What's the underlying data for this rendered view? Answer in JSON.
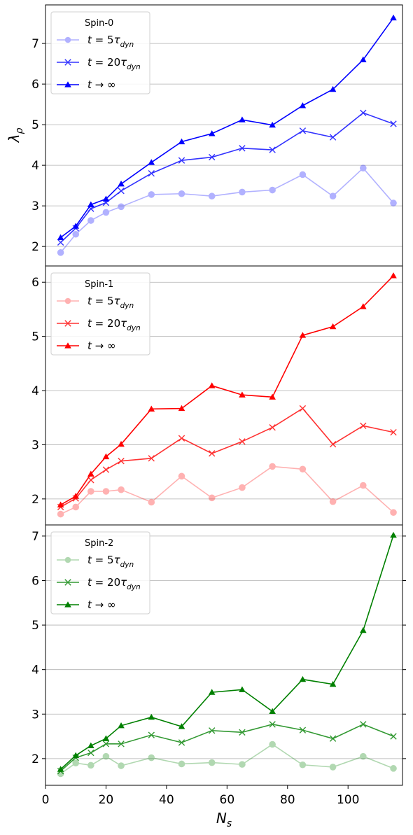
{
  "figure": {
    "xlabel": "N_s",
    "ylabel": "λ_ρ"
  },
  "chart_data": [
    {
      "type": "line",
      "panel": "spin-0",
      "legend_title": "Spin-0",
      "legend_position": "upper-left",
      "grid": "y",
      "xlim": [
        0,
        118
      ],
      "ylim": [
        1.52,
        7.95
      ],
      "yticks": [
        2,
        3,
        4,
        5,
        6,
        7
      ],
      "x": [
        5,
        10,
        15,
        20,
        25,
        35,
        45,
        55,
        65,
        75,
        85,
        95,
        105,
        115
      ],
      "series": [
        {
          "name": "t = 5τ_dyn",
          "marker": "circle",
          "color": "#0000ff",
          "opacity": 0.3,
          "values": [
            1.85,
            2.3,
            2.64,
            2.84,
            2.98,
            3.28,
            3.3,
            3.24,
            3.34,
            3.39,
            3.77,
            3.24,
            3.93,
            3.07
          ]
        },
        {
          "name": "t = 20τ_dyn",
          "marker": "x",
          "color": "#0000ff",
          "opacity": 0.8,
          "values": [
            2.1,
            2.45,
            2.93,
            3.08,
            3.37,
            3.8,
            4.12,
            4.2,
            4.42,
            4.38,
            4.85,
            4.69,
            5.29,
            5.02
          ]
        },
        {
          "name": "t → ∞",
          "marker": "triangle",
          "color": "#0000ff",
          "opacity": 1.0,
          "values": [
            2.22,
            2.5,
            3.03,
            3.17,
            3.54,
            4.07,
            4.58,
            4.78,
            5.12,
            4.99,
            5.47,
            5.87,
            6.6,
            7.63
          ]
        }
      ]
    },
    {
      "type": "line",
      "panel": "spin-1",
      "legend_title": "Spin-1",
      "legend_position": "upper-left",
      "grid": "y",
      "xlim": [
        0,
        118
      ],
      "ylim": [
        1.52,
        6.3
      ],
      "yticks": [
        2,
        3,
        4,
        5,
        6
      ],
      "x": [
        5,
        10,
        15,
        20,
        25,
        35,
        45,
        55,
        65,
        75,
        85,
        95,
        105,
        115
      ],
      "series": [
        {
          "name": "t = 5τ_dyn",
          "marker": "circle",
          "color": "#ff0000",
          "opacity": 0.3,
          "values": [
            1.72,
            1.85,
            2.14,
            2.14,
            2.17,
            1.94,
            2.42,
            2.02,
            2.21,
            2.6,
            2.55,
            1.95,
            2.25,
            1.75
          ]
        },
        {
          "name": "t = 20τ_dyn",
          "marker": "x",
          "color": "#ff0000",
          "opacity": 0.8,
          "values": [
            1.85,
            2.01,
            2.35,
            2.54,
            2.7,
            2.75,
            3.12,
            2.84,
            3.06,
            3.32,
            3.67,
            3.01,
            3.35,
            3.23
          ]
        },
        {
          "name": "t → ∞",
          "marker": "triangle",
          "color": "#ff0000",
          "opacity": 1.0,
          "values": [
            1.89,
            2.05,
            2.46,
            2.78,
            3.01,
            3.66,
            3.67,
            4.09,
            3.92,
            3.88,
            5.02,
            5.18,
            5.55,
            6.12
          ]
        }
      ]
    },
    {
      "type": "line",
      "panel": "spin-2",
      "legend_title": "Spin-2",
      "legend_position": "upper-left",
      "grid": "y",
      "xlim": [
        0,
        118
      ],
      "ylim": [
        1.4,
        7.25
      ],
      "yticks": [
        2,
        3,
        4,
        5,
        6,
        7
      ],
      "x": [
        5,
        10,
        15,
        20,
        25,
        35,
        45,
        55,
        65,
        75,
        85,
        95,
        105,
        115
      ],
      "series": [
        {
          "name": "t = 5τ_dyn",
          "marker": "circle",
          "color": "#008000",
          "opacity": 0.3,
          "values": [
            1.66,
            1.9,
            1.85,
            2.05,
            1.84,
            2.02,
            1.88,
            1.91,
            1.87,
            2.32,
            1.86,
            1.81,
            2.05,
            1.78
          ]
        },
        {
          "name": "t = 20τ_dyn",
          "marker": "x",
          "color": "#008000",
          "opacity": 0.8,
          "values": [
            1.72,
            2.02,
            2.13,
            2.33,
            2.33,
            2.53,
            2.36,
            2.63,
            2.59,
            2.77,
            2.64,
            2.45,
            2.77,
            2.5
          ]
        },
        {
          "name": "t → ∞",
          "marker": "triangle",
          "color": "#008000",
          "opacity": 1.0,
          "values": [
            1.76,
            2.07,
            2.29,
            2.45,
            2.74,
            2.93,
            2.72,
            3.49,
            3.55,
            3.06,
            3.78,
            3.67,
            4.88,
            7.02
          ]
        }
      ]
    }
  ],
  "xaxis": {
    "ticks": [
      0,
      20,
      40,
      60,
      80,
      100
    ],
    "tick_labels": [
      "0",
      "20",
      "40",
      "60",
      "80",
      "100"
    ]
  }
}
